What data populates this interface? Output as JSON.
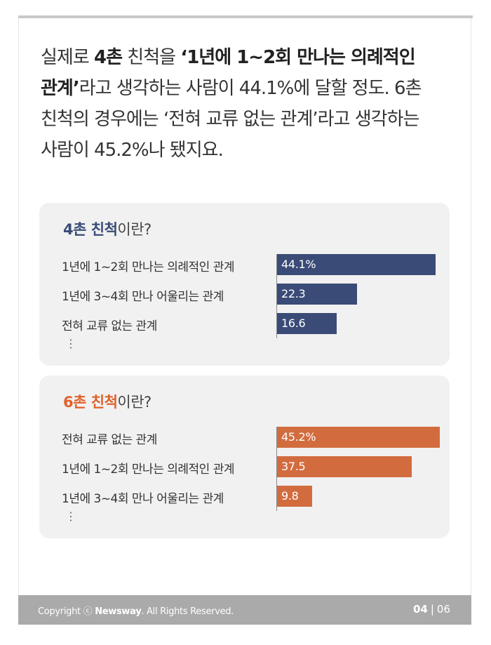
{
  "intro": {
    "p1": "실제로 ",
    "b1": "4촌",
    "p2": " 친척을 ",
    "b2": "‘1년에 1~2회 만나는 의례적인 관계’",
    "p3": "라고 생각하는 사람이 44.1%에 달할 정도. 6촌 친척의 경우에는 ‘전혀 교류 없는 관계’라고 생각하는 사람이 45.2%나 됐지요."
  },
  "chart_data": [
    {
      "type": "bar",
      "orientation": "horizontal",
      "title_bold": "4촌 친척",
      "title_rest": "이란?",
      "color": "#3a4b77",
      "title_color": "#3a4b77",
      "categories": [
        "1년에 1~2회 만나는 의례적인 관계",
        "1년에 3~4회 만나 어울리는 관계",
        "전혀 교류 없는 관계"
      ],
      "values": [
        44.1,
        22.3,
        16.6
      ],
      "value_labels": [
        "44.1%",
        "22.3",
        "16.6"
      ],
      "more": "⋮"
    },
    {
      "type": "bar",
      "orientation": "horizontal",
      "title_bold": "6촌 친척",
      "title_rest": "이란?",
      "color": "#d26c3f",
      "title_color": "#e0622b",
      "categories": [
        "전혀 교류 없는 관계",
        "1년에 1~2회 만나는 의례적인 관계",
        "1년에 3~4회 만나 어울리는 관계"
      ],
      "values": [
        45.2,
        37.5,
        9.8
      ],
      "value_labels": [
        "45.2%",
        "37.5",
        "9.8"
      ],
      "more": "⋮"
    }
  ],
  "footer": {
    "copyright_prefix": "Copyright ⓒ ",
    "brand": "Newsway",
    "copyright_suffix": ". All Rights Reserved.",
    "page_current": "04",
    "page_sep": "|",
    "page_total": "06"
  }
}
